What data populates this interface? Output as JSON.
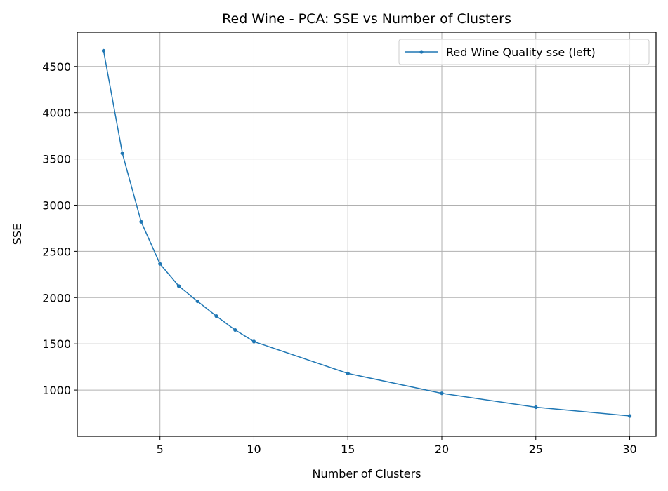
{
  "chart_data": {
    "type": "line",
    "title": "Red Wine - PCA: SSE vs Number of Clusters",
    "xlabel": "Number of Clusters",
    "ylabel": "SSE",
    "xlim": [
      0.6,
      31.4
    ],
    "ylim": [
      500,
      4870
    ],
    "xticks": [
      5,
      10,
      15,
      20,
      25,
      30
    ],
    "yticks": [
      1000,
      1500,
      2000,
      2500,
      3000,
      3500,
      4000,
      4500
    ],
    "grid": true,
    "legend_position": "top-right",
    "series": [
      {
        "name": "Red Wine Quality sse (left)",
        "color": "#1f77b4",
        "marker": "circle",
        "x": [
          2,
          3,
          4,
          5,
          6,
          7,
          8,
          9,
          10,
          15,
          20,
          25,
          30
        ],
        "y": [
          4670,
          3560,
          2820,
          2365,
          2125,
          1960,
          1800,
          1650,
          1525,
          1180,
          965,
          815,
          720
        ]
      }
    ]
  }
}
